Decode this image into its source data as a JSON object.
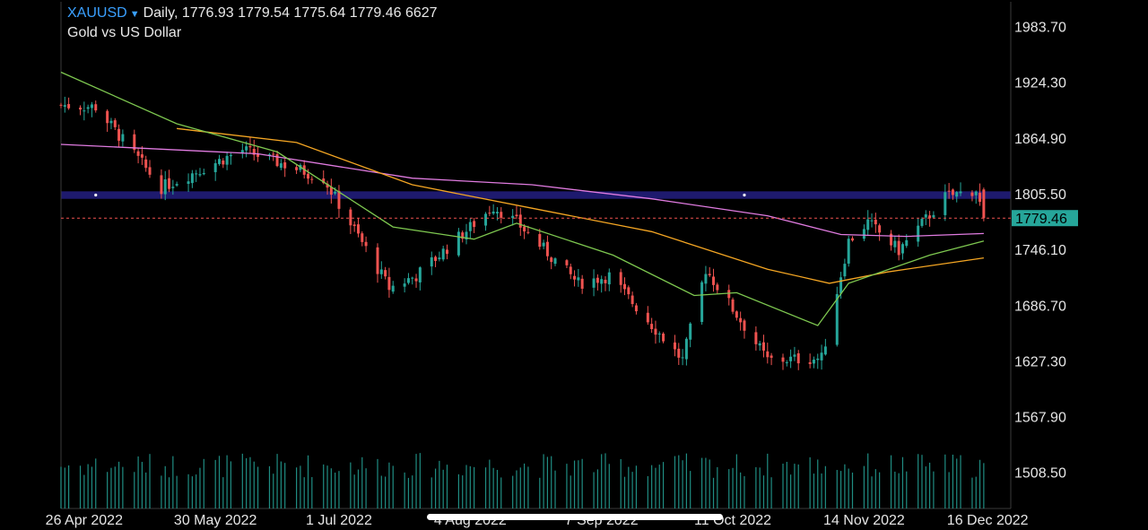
{
  "header": {
    "symbol": "XAUUSD",
    "caret": "▼",
    "timeframe": "Daily,",
    "ohlcv": "1776.93 1779.54 1775.64 1779.46 6627",
    "subtitle": "Gold vs US Dollar"
  },
  "colors": {
    "background": "#000000",
    "up": "#26a69a",
    "down": "#ef5350",
    "ma_fast": "#7ec850",
    "ma_mid": "#f5a623",
    "ma_slow": "#e07be0",
    "zone": "#1e1a6e",
    "price_line": "#ef5350",
    "price_label_bg": "#26a69a",
    "volume": "#26a69a",
    "axis_text": "#e6e6e6",
    "frame": "#3a3a3a"
  },
  "chart_data": {
    "type": "candlestick",
    "symbol": "XAUUSD",
    "ylim": [
      1470,
      2010
    ],
    "y_ticks": [
      "1983.70",
      "1924.30",
      "1864.90",
      "1805.50",
      "1746.10",
      "1686.70",
      "1627.30",
      "1567.90",
      "1508.50"
    ],
    "x_ticks": [
      {
        "label": "26 Apr 2022",
        "date": "2022-04-26"
      },
      {
        "label": "30 May 2022",
        "date": "2022-05-30"
      },
      {
        "label": "1 Jul 2022",
        "date": "2022-07-01"
      },
      {
        "label": "4 Aug 2022",
        "date": "2022-08-04"
      },
      {
        "label": "7 Sep 2022",
        "date": "2022-09-07"
      },
      {
        "label": "11 Oct 2022",
        "date": "2022-10-11"
      },
      {
        "label": "14 Nov 2022",
        "date": "2022-11-14"
      },
      {
        "label": "16 Dec 2022",
        "date": "2022-12-16"
      }
    ],
    "last_price": "1779.46",
    "resistance_zone": [
      1800,
      1808
    ],
    "anchors": [
      {
        "date": "2022-04-20",
        "price": 1900
      },
      {
        "date": "2022-04-29",
        "price": 1898
      },
      {
        "date": "2022-05-16",
        "price": 1812
      },
      {
        "date": "2022-06-06",
        "price": 1852
      },
      {
        "date": "2022-06-27",
        "price": 1822
      },
      {
        "date": "2022-07-14",
        "price": 1705
      },
      {
        "date": "2022-07-21",
        "price": 1718
      },
      {
        "date": "2022-08-10",
        "price": 1792
      },
      {
        "date": "2022-08-16",
        "price": 1775
      },
      {
        "date": "2022-09-01",
        "price": 1710
      },
      {
        "date": "2022-09-09",
        "price": 1718
      },
      {
        "date": "2022-09-28",
        "price": 1628
      },
      {
        "date": "2022-10-04",
        "price": 1725
      },
      {
        "date": "2022-10-20",
        "price": 1628
      },
      {
        "date": "2022-11-03",
        "price": 1630
      },
      {
        "date": "2022-11-10",
        "price": 1755
      },
      {
        "date": "2022-11-15",
        "price": 1775
      },
      {
        "date": "2022-11-23",
        "price": 1745
      },
      {
        "date": "2022-12-05",
        "price": 1802
      },
      {
        "date": "2022-12-13",
        "price": 1810
      },
      {
        "date": "2022-12-15",
        "price": 1779
      }
    ],
    "ma_fast": [
      {
        "date": "2022-04-20",
        "price": 1935
      },
      {
        "date": "2022-05-20",
        "price": 1880
      },
      {
        "date": "2022-06-15",
        "price": 1850
      },
      {
        "date": "2022-07-15",
        "price": 1770
      },
      {
        "date": "2022-08-05",
        "price": 1757
      },
      {
        "date": "2022-08-16",
        "price": 1774
      },
      {
        "date": "2022-09-10",
        "price": 1740
      },
      {
        "date": "2022-10-01",
        "price": 1697
      },
      {
        "date": "2022-10-12",
        "price": 1700
      },
      {
        "date": "2022-11-02",
        "price": 1665
      },
      {
        "date": "2022-11-10",
        "price": 1710
      },
      {
        "date": "2022-12-01",
        "price": 1740
      },
      {
        "date": "2022-12-15",
        "price": 1755
      }
    ],
    "ma_mid": [
      {
        "date": "2022-05-20",
        "price": 1875
      },
      {
        "date": "2022-06-20",
        "price": 1860
      },
      {
        "date": "2022-07-20",
        "price": 1815
      },
      {
        "date": "2022-08-20",
        "price": 1790
      },
      {
        "date": "2022-09-20",
        "price": 1765
      },
      {
        "date": "2022-10-20",
        "price": 1725
      },
      {
        "date": "2022-11-05",
        "price": 1710
      },
      {
        "date": "2022-11-20",
        "price": 1722
      },
      {
        "date": "2022-12-15",
        "price": 1737
      }
    ],
    "ma_slow": [
      {
        "date": "2022-04-20",
        "price": 1858
      },
      {
        "date": "2022-06-10",
        "price": 1848
      },
      {
        "date": "2022-07-20",
        "price": 1822
      },
      {
        "date": "2022-08-20",
        "price": 1815
      },
      {
        "date": "2022-09-20",
        "price": 1800
      },
      {
        "date": "2022-10-20",
        "price": 1782
      },
      {
        "date": "2022-11-08",
        "price": 1762
      },
      {
        "date": "2022-11-25",
        "price": 1760
      },
      {
        "date": "2022-12-15",
        "price": 1763
      }
    ]
  }
}
